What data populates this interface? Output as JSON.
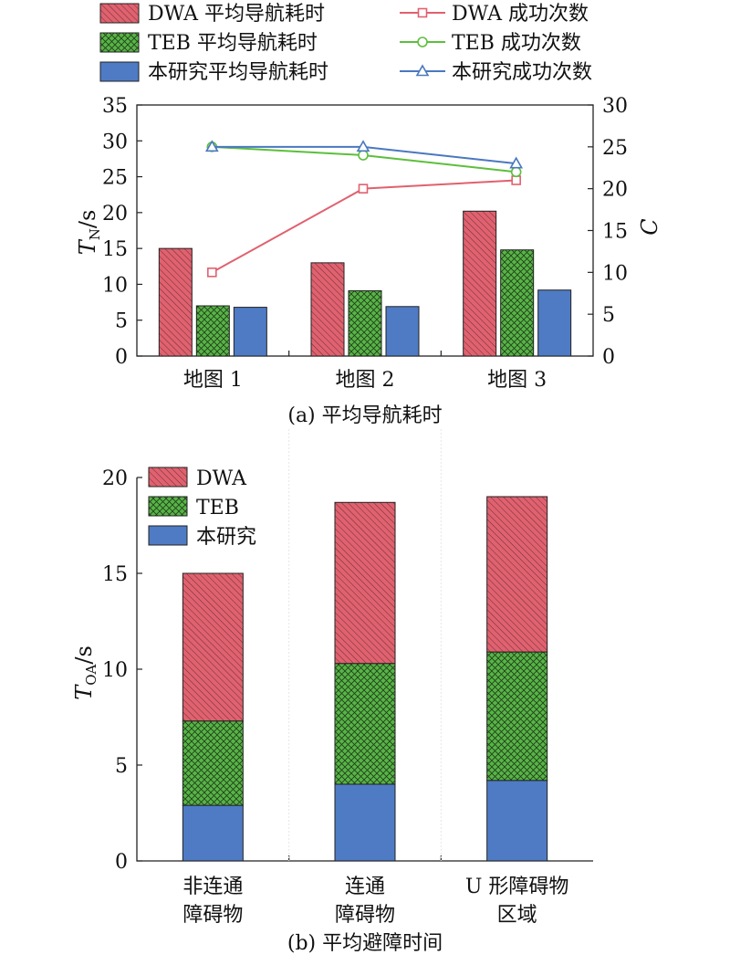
{
  "colors": {
    "dwa": "#e0616f",
    "teb": "#58b447",
    "ours": "#4f7bc4",
    "dwa_line": "#e0616f",
    "teb_line": "#5cbf3c",
    "ours_line": "#4a78c0"
  },
  "chart_data": [
    {
      "type": "bar",
      "title": "(a) 平均导航耗时",
      "categories": [
        "地图 1",
        "地图 2",
        "地图 3"
      ],
      "ylabel_main": "T",
      "ylabel_sub": "N",
      "ylabel_unit": "/s",
      "ylim": [
        0,
        35
      ],
      "yticks": [
        0,
        5,
        10,
        15,
        20,
        25,
        30,
        35
      ],
      "y2label": "C",
      "y2lim": [
        0,
        30
      ],
      "y2ticks": [
        0,
        5,
        10,
        15,
        20,
        25,
        30
      ],
      "legend_position": "top",
      "series": [
        {
          "name": "DWA 平均导航耗时",
          "kind": "bar",
          "color_key": "dwa",
          "pattern": "diag",
          "values": [
            15.0,
            13.0,
            20.2
          ]
        },
        {
          "name": "TEB 平均导航耗时",
          "kind": "bar",
          "color_key": "teb",
          "pattern": "cross",
          "values": [
            7.0,
            9.1,
            14.8
          ]
        },
        {
          "name": "本研究平均导航耗时",
          "kind": "bar",
          "color_key": "ours",
          "pattern": "none",
          "values": [
            6.8,
            6.9,
            9.2
          ]
        }
      ],
      "line_series": [
        {
          "name": "DWA 成功次数",
          "kind": "line",
          "color_key": "dwa_line",
          "marker": "square",
          "values": [
            10,
            20,
            21
          ]
        },
        {
          "name": "TEB 成功次数",
          "kind": "line",
          "color_key": "teb_line",
          "marker": "circle",
          "values": [
            25,
            24,
            22
          ]
        },
        {
          "name": "本研究成功次数",
          "kind": "line",
          "color_key": "ours_line",
          "marker": "triangle",
          "values": [
            25,
            25,
            23
          ]
        }
      ]
    },
    {
      "type": "bar",
      "stacked": true,
      "title": "(b) 平均避障时间",
      "categories": [
        [
          "非连通",
          "障碍物"
        ],
        [
          "连通",
          "障碍物"
        ],
        [
          "U 形障碍物",
          "区域"
        ]
      ],
      "ylabel_main": "T",
      "ylabel_sub": "OA",
      "ylabel_unit": "/s",
      "ylim": [
        0,
        20
      ],
      "yticks": [
        0,
        5,
        10,
        15,
        20
      ],
      "legend_position": "top-left",
      "series": [
        {
          "name": "本研究",
          "color_key": "ours",
          "pattern": "none",
          "values": [
            2.9,
            4.0,
            4.2
          ]
        },
        {
          "name": "TEB",
          "color_key": "teb",
          "pattern": "cross",
          "values": [
            4.4,
            6.3,
            6.7
          ]
        },
        {
          "name": "DWA",
          "color_key": "dwa",
          "pattern": "diag",
          "values": [
            7.7,
            8.4,
            8.1
          ]
        }
      ],
      "legend_order": [
        "DWA",
        "TEB",
        "本研究"
      ]
    }
  ]
}
